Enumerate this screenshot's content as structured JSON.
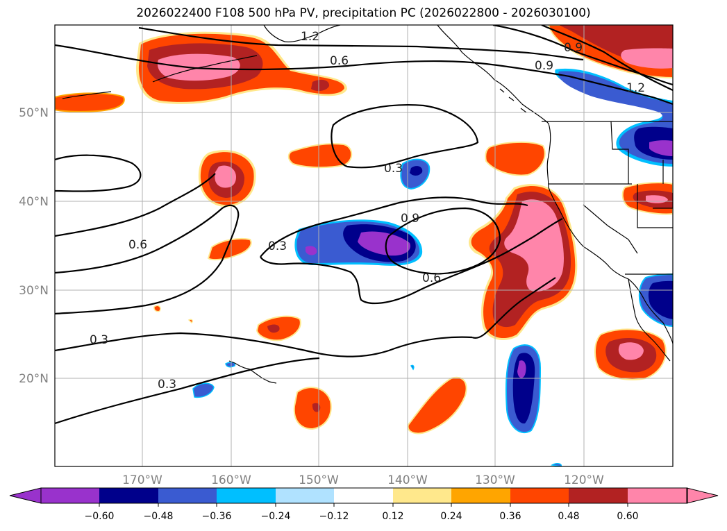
{
  "title": "2026022400 F108 500 hPa PV, precipitation PC (2026022800 - 2026030100)",
  "lat_labels": [
    "50°N",
    "40°N",
    "30°N",
    "20°N"
  ],
  "lon_labels": [
    "170°W",
    "160°W",
    "150°W",
    "140°W",
    "130°W",
    "120°W"
  ],
  "contour_labels": [
    "1.2",
    "0.6",
    "0.9",
    "0.9",
    "1.2",
    "0.3",
    "0.9",
    "0.3",
    "0.6",
    "0.6",
    "0.3",
    "0.3"
  ],
  "colorbar": {
    "ticks": [
      "−0.60",
      "−0.48",
      "−0.36",
      "−0.24",
      "−0.12",
      "0.12",
      "0.24",
      "0.36",
      "0.48",
      "0.60"
    ],
    "colors": [
      "#9932cc",
      "#00008b",
      "#3a5bd1",
      "#00bfff",
      "#b0e2ff",
      "#ffffff",
      "#ffe88c",
      "#ffa500",
      "#ff4500",
      "#b22222",
      "#ff85aa",
      "#ff85aa"
    ]
  },
  "palette": {
    "neg_light": "#b0e2ff",
    "neg_cyan": "#00bfff",
    "neg_blue": "#3a5bd1",
    "neg_navy": "#00008b",
    "neg_purple": "#9932cc",
    "pos_yellow": "#ffe88c",
    "pos_orange": "#ffa500",
    "pos_red": "#ff4500",
    "pos_brick": "#b22222",
    "pos_pink": "#ff85aa"
  }
}
